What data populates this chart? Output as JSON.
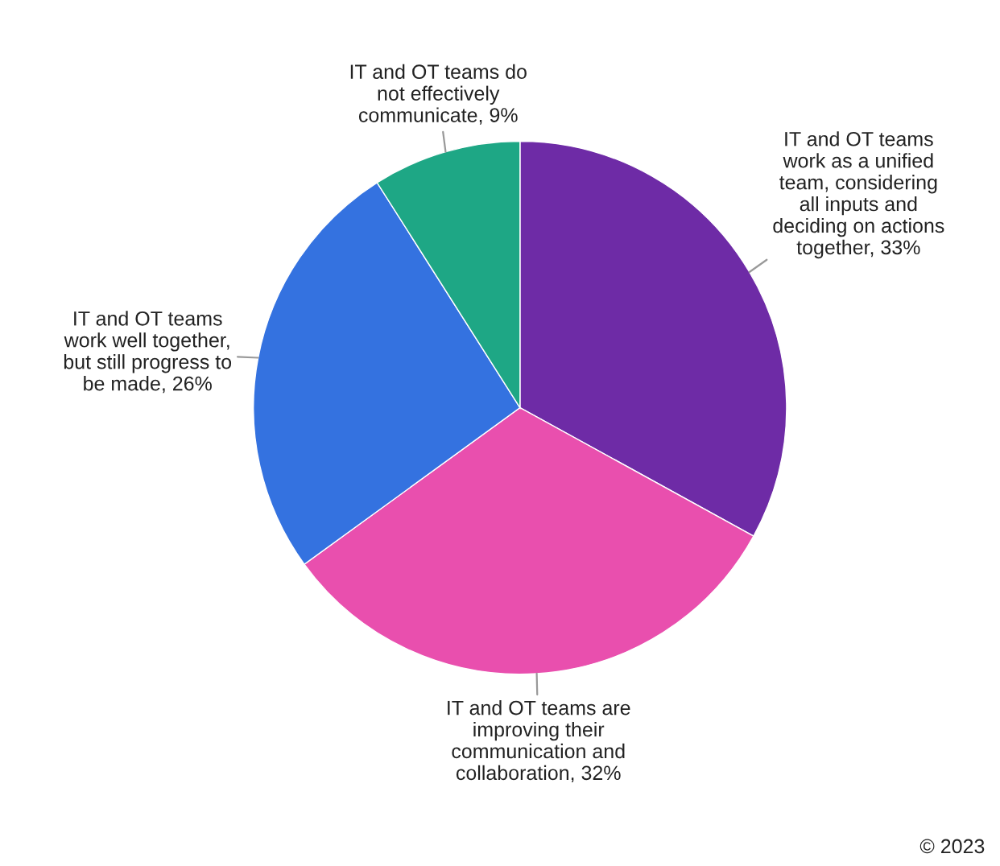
{
  "chart_data": {
    "type": "pie",
    "categories": [
      "IT and OT teams\nwork as a unified\nteam, considering\nall inputs and\ndeciding on actions\ntogether, 33%",
      "IT and OT teams are\nimproving their\ncommunication and\ncollaboration, 32%",
      "IT and OT teams\nwork well together,\nbut still progress to\nbe made, 26%",
      "IT and OT teams do\nnot effectively\ncommunicate, 9%"
    ],
    "values": [
      33,
      32,
      26,
      9
    ],
    "colors": [
      "#6e2ba6",
      "#e94fae",
      "#3472e0",
      "#1ea785"
    ],
    "annotations": [
      "© 2023"
    ]
  }
}
